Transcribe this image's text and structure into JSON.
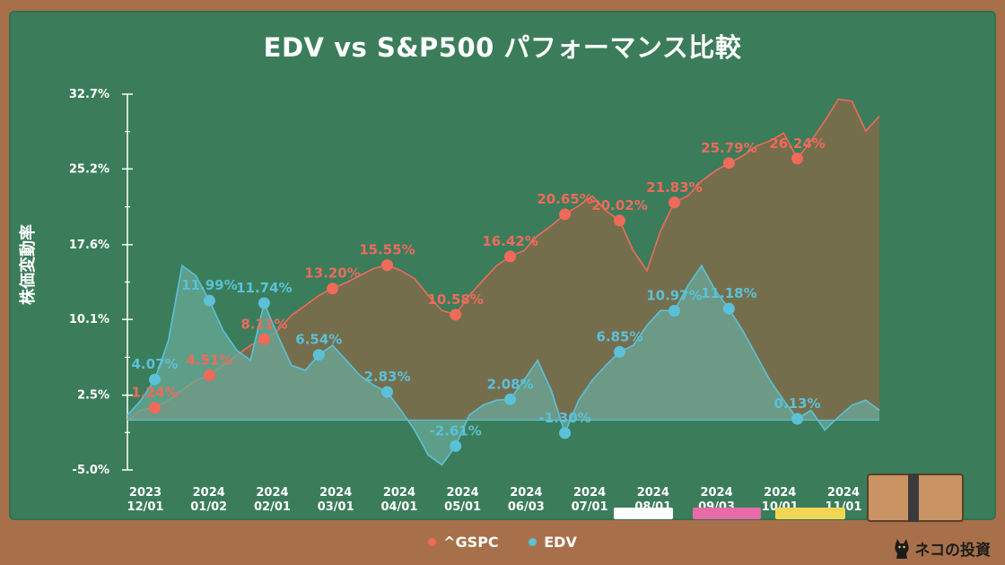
{
  "title": "EDV vs S&P500 パフォーマンス比較",
  "ylabel": "株価変動率",
  "brand": "ネコの投資",
  "colors": {
    "board": "#3b7d5a",
    "frame": "#a8704a",
    "gspc": "#f06a5a",
    "edv": "#5bc1d8",
    "gspc_fill": "#8a6a4a",
    "edv_fill": "#6aa99a",
    "text": "#ffffff"
  },
  "legend": [
    {
      "name": "^GSPC",
      "color": "#f06a5a"
    },
    {
      "name": "EDV",
      "color": "#5bc1d8"
    }
  ],
  "chart_data": {
    "type": "area",
    "ylim": [
      -5.0,
      32.7
    ],
    "yticks": [
      "32.7%",
      "25.2%",
      "17.6%",
      "10.1%",
      "2.5%",
      "-5.0%"
    ],
    "ytick_values": [
      32.7,
      25.2,
      17.6,
      10.1,
      2.5,
      -5.0
    ],
    "xticks": [
      {
        "year": "2023",
        "date": "12/01"
      },
      {
        "year": "2024",
        "date": "01/02"
      },
      {
        "year": "2024",
        "date": "02/01"
      },
      {
        "year": "2024",
        "date": "03/01"
      },
      {
        "year": "2024",
        "date": "04/01"
      },
      {
        "year": "2024",
        "date": "05/01"
      },
      {
        "year": "2024",
        "date": "06/03"
      },
      {
        "year": "2024",
        "date": "07/01"
      },
      {
        "year": "2024",
        "date": "08/01"
      },
      {
        "year": "2024",
        "date": "09/03"
      },
      {
        "year": "2024",
        "date": "10/01"
      },
      {
        "year": "2024",
        "date": "11/01"
      }
    ],
    "series": [
      {
        "name": "^GSPC",
        "color": "#f06a5a",
        "values": [
          0,
          1.0,
          1.24,
          2.0,
          3.0,
          4.0,
          4.51,
          5.5,
          6.5,
          7.5,
          8.11,
          9.0,
          10.5,
          11.5,
          12.5,
          13.2,
          13.8,
          14.5,
          15.2,
          15.55,
          15.0,
          14.2,
          12.5,
          11.0,
          10.58,
          12.5,
          14.0,
          15.5,
          16.42,
          17.0,
          18.5,
          19.5,
          20.65,
          21.5,
          22.5,
          21.0,
          20.02,
          17.0,
          15.0,
          19.0,
          21.83,
          22.5,
          24.0,
          25.0,
          25.79,
          26.5,
          27.5,
          28.0,
          28.8,
          26.24,
          28.0,
          30.0,
          32.2,
          32.0,
          29.0,
          30.5
        ],
        "markers": [
          {
            "i": 2,
            "label": "1.24%"
          },
          {
            "i": 6,
            "label": "4.51%"
          },
          {
            "i": 10,
            "label": "8.11%"
          },
          {
            "i": 15,
            "label": "13.20%"
          },
          {
            "i": 19,
            "label": "15.55%"
          },
          {
            "i": 24,
            "label": "10.58%"
          },
          {
            "i": 28,
            "label": "16.42%"
          },
          {
            "i": 32,
            "label": "20.65%"
          },
          {
            "i": 36,
            "label": "20.02%"
          },
          {
            "i": 40,
            "label": "21.83%"
          },
          {
            "i": 44,
            "label": "25.79%"
          },
          {
            "i": 49,
            "label": "26.24%"
          }
        ]
      },
      {
        "name": "EDV",
        "color": "#5bc1d8",
        "values": [
          0.5,
          2.0,
          4.07,
          8.0,
          15.5,
          14.5,
          11.99,
          9.0,
          7.0,
          6.0,
          11.74,
          8.5,
          5.5,
          5.0,
          6.54,
          7.5,
          6.0,
          4.5,
          3.5,
          2.83,
          1.0,
          -1.0,
          -3.5,
          -4.5,
          -2.61,
          0.5,
          1.5,
          2.0,
          2.08,
          4.0,
          6.0,
          3.0,
          -1.3,
          2.0,
          4.0,
          5.5,
          6.85,
          7.5,
          9.5,
          11.0,
          10.97,
          13.5,
          15.5,
          13.0,
          11.18,
          9.0,
          6.5,
          4.0,
          2.0,
          0.13,
          1.0,
          -1.0,
          0.3,
          1.5,
          2.0,
          1.0
        ],
        "markers": [
          {
            "i": 2,
            "label": "4.07%"
          },
          {
            "i": 6,
            "label": "11.99%"
          },
          {
            "i": 10,
            "label": "11.74%"
          },
          {
            "i": 14,
            "label": "6.54%"
          },
          {
            "i": 19,
            "label": "2.83%"
          },
          {
            "i": 24,
            "label": "-2.61%"
          },
          {
            "i": 28,
            "label": "2.08%"
          },
          {
            "i": 32,
            "label": "-1.30%"
          },
          {
            "i": 36,
            "label": "6.85%"
          },
          {
            "i": 40,
            "label": "10.97%"
          },
          {
            "i": 44,
            "label": "11.18%"
          },
          {
            "i": 49,
            "label": "0.13%"
          }
        ]
      }
    ]
  }
}
